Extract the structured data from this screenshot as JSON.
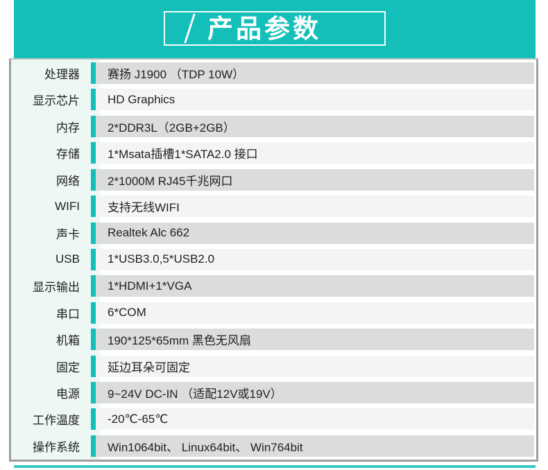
{
  "colors": {
    "accent": "#14bfba",
    "row_dark": "#dbdddd",
    "row_light": "#f3f4f4",
    "label_bg": "#edf7f4",
    "border": "#9f9f9f"
  },
  "header": {
    "title": "产品参数",
    "slash_icon": "slash-icon"
  },
  "table": {
    "rows": [
      {
        "label": "处理器",
        "value": "赛扬 J1900 （TDP 10W）"
      },
      {
        "label": "显示芯片",
        "value": "HD Graphics"
      },
      {
        "label": "内存",
        "value": "2*DDR3L（2GB+2GB）"
      },
      {
        "label": "存储",
        "value": "1*Msata插槽1*SATA2.0 接口"
      },
      {
        "label": "网络",
        "value": "2*1000M RJ45千兆网口"
      },
      {
        "label": "WIFI",
        "value": "支持无线WIFI"
      },
      {
        "label": "声卡",
        "value": "Realtek Alc 662"
      },
      {
        "label": "USB",
        "value": "1*USB3.0,5*USB2.0"
      },
      {
        "label": "显示输出",
        "value": "1*HDMI+1*VGA"
      },
      {
        "label": "串口",
        "value": "6*COM"
      },
      {
        "label": "机箱",
        "value": "190*125*65mm 黑色无风扇"
      },
      {
        "label": "固定",
        "value": "延边耳朵可固定"
      },
      {
        "label": "电源",
        "value": "9~24V DC-IN （适配12V或19V）"
      },
      {
        "label": "工作温度",
        "value": "-20℃-65℃"
      },
      {
        "label": "操作系统",
        "value": "Win1064bit、 Linux64bit、 Win764bit"
      }
    ]
  }
}
